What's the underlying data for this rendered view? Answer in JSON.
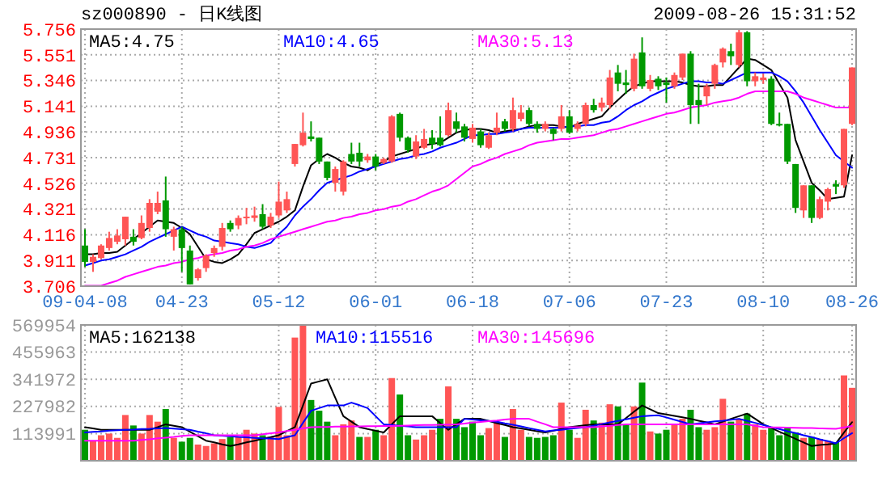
{
  "chart_data": [
    {
      "type": "candlestick",
      "title": "sz000890 - 日K线图",
      "subtitle": "2009-08-26 15:31:52",
      "categories": [
        "09-04-08",
        null,
        null,
        null,
        null,
        null,
        null,
        null,
        null,
        null,
        null,
        null,
        "04-23",
        null,
        null,
        null,
        null,
        null,
        null,
        null,
        null,
        null,
        null,
        null,
        "05-12",
        null,
        null,
        null,
        null,
        null,
        null,
        null,
        null,
        null,
        null,
        null,
        "06-01",
        null,
        null,
        null,
        null,
        null,
        null,
        null,
        null,
        null,
        null,
        null,
        "06-18",
        null,
        null,
        null,
        null,
        null,
        null,
        null,
        null,
        null,
        null,
        null,
        "07-06",
        null,
        null,
        null,
        null,
        null,
        null,
        null,
        null,
        null,
        null,
        null,
        "07-23",
        null,
        null,
        null,
        null,
        null,
        null,
        null,
        null,
        null,
        null,
        null,
        "08-10",
        null,
        null,
        null,
        null,
        null,
        null,
        null,
        null,
        null,
        null,
        "08-26"
      ],
      "ohlc": [
        [
          4.03,
          4.16,
          3.86,
          3.9
        ],
        [
          3.9,
          3.96,
          3.82,
          3.94
        ],
        [
          3.93,
          4.04,
          3.92,
          4.03
        ],
        [
          4.01,
          4.14,
          3.99,
          4.09
        ],
        [
          4.06,
          4.16,
          4.04,
          4.11
        ],
        [
          4.08,
          4.26,
          4.03,
          4.26
        ],
        [
          4.1,
          4.16,
          4.03,
          4.06
        ],
        [
          4.09,
          4.27,
          4.08,
          4.21
        ],
        [
          4.17,
          4.4,
          4.14,
          4.37
        ],
        [
          4.3,
          4.46,
          4.28,
          4.37
        ],
        [
          4.39,
          4.58,
          4.1,
          4.16
        ],
        [
          4.1,
          4.18,
          3.99,
          4.16
        ],
        [
          4.16,
          4.18,
          3.82,
          4.01
        ],
        [
          3.99,
          4.03,
          3.72,
          3.72
        ],
        [
          3.77,
          3.85,
          3.75,
          3.84
        ],
        [
          3.85,
          3.96,
          3.82,
          3.95
        ],
        [
          3.97,
          4.03,
          3.94,
          4.01
        ],
        [
          4.02,
          4.21,
          3.99,
          4.17
        ],
        [
          4.21,
          4.23,
          4.14,
          4.16
        ],
        [
          4.19,
          4.27,
          4.16,
          4.25
        ],
        [
          4.25,
          4.33,
          4.2,
          4.26
        ],
        [
          4.25,
          4.34,
          4.22,
          4.27
        ],
        [
          4.28,
          4.36,
          4.16,
          4.18
        ],
        [
          4.19,
          4.29,
          4.17,
          4.26
        ],
        [
          4.27,
          4.54,
          4.25,
          4.38
        ],
        [
          4.31,
          4.46,
          4.29,
          4.4
        ],
        [
          4.68,
          4.84,
          4.66,
          4.84
        ],
        [
          4.83,
          5.09,
          4.82,
          4.93
        ],
        [
          4.9,
          5.02,
          4.86,
          4.88
        ],
        [
          4.89,
          4.89,
          4.68,
          4.7
        ],
        [
          4.7,
          4.7,
          4.55,
          4.57
        ],
        [
          4.53,
          4.66,
          4.46,
          4.64
        ],
        [
          4.46,
          4.71,
          4.43,
          4.7
        ],
        [
          4.76,
          4.85,
          4.68,
          4.7
        ],
        [
          4.77,
          4.85,
          4.66,
          4.7
        ],
        [
          4.71,
          4.76,
          4.69,
          4.74
        ],
        [
          4.74,
          4.76,
          4.63,
          4.66
        ],
        [
          4.69,
          4.73,
          4.68,
          4.72
        ],
        [
          4.7,
          5.07,
          4.69,
          5.06
        ],
        [
          5.08,
          5.09,
          4.86,
          4.89
        ],
        [
          4.89,
          4.9,
          4.77,
          4.79
        ],
        [
          4.74,
          4.91,
          4.72,
          4.86
        ],
        [
          4.81,
          4.96,
          4.8,
          4.88
        ],
        [
          4.89,
          4.95,
          4.8,
          4.84
        ],
        [
          4.89,
          5.06,
          4.82,
          4.83
        ],
        [
          4.91,
          5.17,
          4.9,
          5.11
        ],
        [
          5.02,
          5.09,
          4.93,
          4.96
        ],
        [
          4.98,
          5.0,
          4.86,
          4.89
        ],
        [
          4.88,
          5.0,
          4.85,
          4.97
        ],
        [
          4.94,
          4.96,
          4.81,
          4.83
        ],
        [
          4.81,
          4.93,
          4.8,
          4.91
        ],
        [
          4.93,
          5.09,
          4.91,
          4.97
        ],
        [
          5.02,
          5.04,
          4.94,
          4.96
        ],
        [
          4.96,
          5.21,
          4.94,
          5.11
        ],
        [
          5.04,
          5.15,
          5.02,
          5.09
        ],
        [
          5.11,
          5.13,
          4.98,
          5.0
        ],
        [
          5.0,
          5.02,
          4.93,
          4.96
        ],
        [
          4.96,
          5.02,
          4.94,
          5.0
        ],
        [
          4.96,
          4.97,
          4.87,
          4.92
        ],
        [
          4.96,
          5.15,
          4.94,
          5.06
        ],
        [
          5.06,
          5.11,
          4.92,
          4.93
        ],
        [
          4.96,
          5.02,
          4.94,
          5.0
        ],
        [
          5.0,
          5.17,
          4.98,
          5.15
        ],
        [
          5.15,
          5.2,
          5.09,
          5.11
        ],
        [
          5.13,
          5.21,
          5.1,
          5.17
        ],
        [
          5.15,
          5.43,
          5.12,
          5.37
        ],
        [
          5.41,
          5.47,
          5.26,
          5.32
        ],
        [
          5.33,
          5.43,
          5.24,
          5.31
        ],
        [
          5.28,
          5.56,
          5.26,
          5.52
        ],
        [
          5.57,
          5.69,
          5.28,
          5.3
        ],
        [
          5.28,
          5.39,
          5.26,
          5.35
        ],
        [
          5.36,
          5.38,
          5.27,
          5.3
        ],
        [
          5.33,
          5.37,
          5.17,
          5.31
        ],
        [
          5.3,
          5.41,
          5.28,
          5.39
        ],
        [
          5.37,
          5.56,
          5.35,
          5.56
        ],
        [
          5.56,
          5.58,
          5.0,
          5.15
        ],
        [
          5.19,
          5.32,
          5.0,
          5.15
        ],
        [
          5.22,
          5.32,
          5.15,
          5.3
        ],
        [
          5.32,
          5.48,
          5.28,
          5.47
        ],
        [
          5.49,
          5.61,
          5.45,
          5.6
        ],
        [
          5.58,
          5.64,
          5.47,
          5.54
        ],
        [
          5.47,
          5.75,
          5.45,
          5.73
        ],
        [
          5.73,
          5.74,
          5.3,
          5.34
        ],
        [
          5.34,
          5.41,
          5.3,
          5.38
        ],
        [
          5.35,
          5.4,
          5.32,
          5.37
        ],
        [
          5.36,
          5.38,
          4.99,
          5.0
        ],
        [
          5.0,
          5.09,
          4.98,
          4.99
        ],
        [
          5.0,
          5.0,
          4.68,
          4.7
        ],
        [
          4.68,
          4.68,
          4.29,
          4.33
        ],
        [
          4.31,
          4.51,
          4.25,
          4.51
        ],
        [
          4.51,
          4.51,
          4.21,
          4.25
        ],
        [
          4.25,
          4.42,
          4.24,
          4.4
        ],
        [
          4.38,
          4.49,
          4.31,
          4.48
        ],
        [
          4.52,
          4.55,
          4.44,
          4.5
        ],
        [
          4.51,
          4.96,
          4.49,
          4.96
        ],
        [
          5.0,
          5.45,
          4.99,
          5.45
        ]
      ],
      "series": [
        {
          "name": "MA5:4.75",
          "type": "line",
          "color": "#000000",
          "values": [
            3.96,
            3.96,
            3.97,
            3.97,
            3.98,
            4.03,
            4.08,
            4.13,
            4.18,
            4.23,
            4.22,
            4.21,
            4.17,
            4.12,
            4.02,
            3.92,
            3.9,
            3.89,
            3.92,
            3.96,
            4.04,
            4.13,
            4.16,
            4.19,
            4.22,
            4.26,
            4.31,
            4.5,
            4.67,
            4.72,
            4.76,
            4.73,
            4.69,
            4.66,
            4.65,
            4.63,
            4.67,
            4.7,
            4.74,
            4.76,
            4.78,
            4.8,
            4.83,
            4.84,
            4.85,
            4.89,
            4.93,
            4.95,
            4.96,
            4.96,
            4.95,
            4.93,
            4.94,
            4.95,
            4.96,
            4.98,
            4.99,
            4.99,
            4.99,
            4.98,
            4.97,
            5.0,
            5.02,
            5.04,
            5.06,
            5.13,
            5.19,
            5.25,
            5.3,
            5.32,
            5.34,
            5.34,
            5.34,
            5.34,
            5.33,
            5.31,
            5.3,
            5.3,
            5.31,
            5.31,
            5.38,
            5.45,
            5.52,
            5.51,
            5.47,
            5.43,
            5.32,
            5.21,
            4.87,
            4.7,
            4.53,
            4.47,
            4.4,
            4.41,
            4.42,
            4.75
          ]
        },
        {
          "name": "MA10:4.65",
          "type": "line",
          "color": "#0000ff",
          "values": [
            3.87,
            3.89,
            3.91,
            3.92,
            3.94,
            3.96,
            3.99,
            4.02,
            4.06,
            4.09,
            4.12,
            4.15,
            4.18,
            4.15,
            4.12,
            4.1,
            4.07,
            4.06,
            4.05,
            4.04,
            4.02,
            4.01,
            4.03,
            4.05,
            4.12,
            4.18,
            4.27,
            4.34,
            4.4,
            4.47,
            4.53,
            4.55,
            4.57,
            4.59,
            4.62,
            4.64,
            4.66,
            4.68,
            4.7,
            4.72,
            4.73,
            4.75,
            4.76,
            4.78,
            4.81,
            4.83,
            4.85,
            4.88,
            4.91,
            4.91,
            4.92,
            4.92,
            4.93,
            4.94,
            4.96,
            4.97,
            4.97,
            4.97,
            4.97,
            4.97,
            4.98,
            4.98,
            4.99,
            4.99,
            5.01,
            5.02,
            5.06,
            5.11,
            5.15,
            5.18,
            5.22,
            5.25,
            5.28,
            5.3,
            5.32,
            5.34,
            5.34,
            5.33,
            5.33,
            5.32,
            5.35,
            5.38,
            5.41,
            5.41,
            5.41,
            5.41,
            5.38,
            5.34,
            5.26,
            5.17,
            5.06,
            4.95,
            4.85,
            4.75,
            4.7,
            4.65
          ]
        },
        {
          "name": "MA30:5.13",
          "type": "line",
          "color": "#ff00ff",
          "values": [
            3.71,
            3.71,
            3.71,
            3.73,
            3.75,
            3.78,
            3.8,
            3.82,
            3.84,
            3.86,
            3.87,
            3.89,
            3.9,
            3.92,
            3.93,
            3.95,
            3.96,
            3.97,
            3.99,
            4.0,
            4.02,
            4.03,
            4.05,
            4.08,
            4.1,
            4.12,
            4.14,
            4.16,
            4.18,
            4.2,
            4.22,
            4.23,
            4.25,
            4.26,
            4.28,
            4.29,
            4.31,
            4.32,
            4.34,
            4.35,
            4.38,
            4.4,
            4.43,
            4.46,
            4.48,
            4.51,
            4.56,
            4.61,
            4.66,
            4.68,
            4.71,
            4.73,
            4.76,
            4.78,
            4.8,
            4.83,
            4.85,
            4.86,
            4.87,
            4.88,
            4.88,
            4.89,
            4.9,
            4.91,
            4.93,
            4.95,
            4.96,
            4.98,
            5.0,
            5.02,
            5.04,
            5.06,
            5.08,
            5.09,
            5.11,
            5.13,
            5.14,
            5.15,
            5.17,
            5.18,
            5.19,
            5.21,
            5.24,
            5.26,
            5.26,
            5.26,
            5.26,
            5.26,
            5.24,
            5.21,
            5.19,
            5.17,
            5.15,
            5.13,
            5.13,
            5.13
          ]
        }
      ],
      "ylim": [
        3.706,
        5.756
      ],
      "yticks": [
        3.706,
        3.911,
        4.116,
        4.321,
        4.526,
        4.731,
        4.936,
        5.141,
        5.346,
        5.551,
        5.756
      ],
      "grid": true,
      "legend": "top left"
    },
    {
      "type": "bar",
      "categories": [
        null,
        null,
        null,
        null,
        null,
        null,
        null,
        null,
        null,
        null,
        null,
        null,
        null,
        null,
        null,
        null,
        null,
        null,
        null,
        null,
        null,
        null,
        null,
        null,
        null,
        null,
        null,
        null,
        null,
        null,
        null,
        null,
        null,
        null,
        null,
        null,
        null,
        null,
        null,
        null,
        null,
        null,
        null,
        null,
        null,
        null,
        null,
        null,
        null,
        null,
        null,
        null,
        null,
        null,
        null,
        null,
        null,
        null,
        null,
        null,
        null,
        null,
        null,
        null,
        null,
        null,
        null,
        null,
        null,
        null,
        null,
        null,
        null,
        null,
        null,
        null,
        null,
        null,
        null,
        null,
        null,
        null,
        null,
        null,
        null,
        null,
        null,
        null,
        null,
        null,
        null,
        null,
        null,
        null,
        null,
        null
      ],
      "values": [
        130000,
        84000,
        107000,
        114000,
        96000,
        192000,
        148000,
        114000,
        192000,
        164000,
        217000,
        96000,
        80000,
        96000,
        68000,
        62000,
        73000,
        91000,
        100000,
        100000,
        130000,
        114000,
        107000,
        100000,
        226000,
        107000,
        517000,
        569000,
        255000,
        210000,
        164000,
        107000,
        153000,
        169000,
        100000,
        100000,
        130000,
        107000,
        347000,
        278000,
        107000,
        89000,
        107000,
        130000,
        176000,
        312000,
        176000,
        141000,
        164000,
        107000,
        137000,
        164000,
        100000,
        217000,
        130000,
        100000,
        96000,
        100000,
        107000,
        244000,
        130000,
        96000,
        214000,
        169000,
        160000,
        237000,
        228000,
        153000,
        228000,
        328000,
        123000,
        114000,
        130000,
        153000,
        176000,
        214000,
        141000,
        130000,
        141000,
        260000,
        164000,
        176000,
        198000,
        153000,
        130000,
        141000,
        107000,
        141000,
        119000,
        96000,
        100000,
        91000,
        84000,
        78000,
        358000,
        306000
      ],
      "colors": [
        "#009900",
        "#ff5555",
        "#ff5555",
        "#ff5555",
        "#ff5555",
        "#ff5555",
        "#009900",
        "#ff5555",
        "#ff5555",
        "#ff5555",
        "#009900",
        "#ff5555",
        "#009900",
        "#009900",
        "#ff5555",
        "#ff5555",
        "#ff5555",
        "#ff5555",
        "#009900",
        "#ff5555",
        "#ff5555",
        "#ff5555",
        "#009900",
        "#ff5555",
        "#ff5555",
        "#ff5555",
        "#ff5555",
        "#ff5555",
        "#009900",
        "#009900",
        "#009900",
        "#ff5555",
        "#ff5555",
        "#ff5555",
        "#009900",
        "#ff5555",
        "#009900",
        "#ff5555",
        "#ff5555",
        "#009900",
        "#009900",
        "#ff5555",
        "#ff5555",
        "#ff5555",
        "#009900",
        "#ff5555",
        "#009900",
        "#009900",
        "#009900",
        "#009900",
        "#ff5555",
        "#ff5555",
        "#009900",
        "#ff5555",
        "#ff5555",
        "#009900",
        "#009900",
        "#009900",
        "#009900",
        "#ff5555",
        "#009900",
        "#ff5555",
        "#ff5555",
        "#009900",
        "#ff5555",
        "#ff5555",
        "#009900",
        "#009900",
        "#ff5555",
        "#009900",
        "#ff5555",
        "#009900",
        "#009900",
        "#ff5555",
        "#ff5555",
        "#009900",
        "#009900",
        "#ff5555",
        "#ff5555",
        "#ff5555",
        "#009900",
        "#ff5555",
        "#009900",
        "#ff5555",
        "#ff5555",
        "#009900",
        "#009900",
        "#009900",
        "#009900",
        "#ff5555",
        "#009900",
        "#ff5555",
        "#ff5555",
        "#009900",
        "#ff5555",
        "#ff5555"
      ],
      "series": [
        {
          "name": "MA5:162138",
          "type": "line",
          "color": "#000000",
          "values": [
            141000,
            136000,
            130000,
            130000,
            130000,
            130000,
            130000,
            130000,
            130000,
            141000,
            153000,
            147000,
            141000,
            122000,
            103000,
            84000,
            77000,
            69000,
            62000,
            69000,
            77000,
            84000,
            92000,
            99000,
            107000,
            124000,
            141000,
            232000,
            324000,
            333000,
            342000,
            264000,
            187000,
            164000,
            141000,
            133000,
            126000,
            119000,
            153000,
            187000,
            187000,
            187000,
            187000,
            187000,
            158000,
            130000,
            153000,
            176000,
            176000,
            176000,
            167000,
            158000,
            150000,
            141000,
            136000,
            130000,
            124000,
            119000,
            126000,
            134000,
            141000,
            145000,
            149000,
            153000,
            153000,
            153000,
            153000,
            179000,
            206000,
            232000,
            216000,
            200000,
            194000,
            188000,
            182000,
            176000,
            168000,
            161000,
            153000,
            164000,
            176000,
            187000,
            198000,
            176000,
            153000,
            138000,
            122000,
            107000,
            92000,
            77000,
            62000,
            66000,
            69000,
            73000,
            118000,
            162000
          ]
        },
        {
          "name": "MA10:115516",
          "type": "line",
          "color": "#0000ff",
          "values": [
            119000,
            121000,
            123000,
            126000,
            128000,
            130000,
            131000,
            133000,
            134000,
            136000,
            137000,
            135000,
            132000,
            130000,
            122000,
            115000,
            107000,
            105000,
            103000,
            100000,
            98000,
            96000,
            94000,
            93000,
            91000,
            99000,
            107000,
            159000,
            210000,
            221000,
            232000,
            232000,
            232000,
            244000,
            233000,
            221000,
            187000,
            153000,
            150000,
            147000,
            144000,
            141000,
            141000,
            141000,
            141000,
            141000,
            141000,
            176000,
            173000,
            170000,
            167000,
            164000,
            157000,
            151000,
            144000,
            137000,
            130000,
            123000,
            127000,
            130000,
            134000,
            137000,
            141000,
            147000,
            154000,
            161000,
            167000,
            174000,
            181000,
            187000,
            189000,
            191000,
            182000,
            172000,
            163000,
            153000,
            157000,
            161000,
            165000,
            168000,
            172000,
            176000,
            167000,
            159000,
            150000,
            141000,
            133000,
            124000,
            116000,
            107000,
            99000,
            90000,
            82000,
            73000,
            95000,
            116000
          ]
        },
        {
          "name": "MA30:145696",
          "type": "line",
          "color": "#ff00ff",
          "values": [
            84000,
            84000,
            84000,
            84000,
            84000,
            84000,
            84000,
            87000,
            90000,
            94000,
            97000,
            100000,
            104000,
            107000,
            107000,
            107000,
            107000,
            107000,
            107000,
            107000,
            107000,
            107000,
            111000,
            115000,
            119000,
            125000,
            130000,
            136000,
            141000,
            142000,
            142000,
            143000,
            143000,
            144000,
            144000,
            145000,
            145000,
            146000,
            146000,
            147000,
            148000,
            149000,
            150000,
            150000,
            151000,
            152000,
            153000,
            156000,
            160000,
            163000,
            166000,
            169000,
            173000,
            176000,
            176000,
            176000,
            164000,
            153000,
            141000,
            141000,
            141000,
            141000,
            141000,
            141000,
            144000,
            147000,
            150000,
            153000,
            153000,
            153000,
            153000,
            153000,
            153000,
            153000,
            153000,
            153000,
            153000,
            153000,
            153000,
            153000,
            153000,
            153000,
            153000,
            147000,
            141000,
            140000,
            140000,
            139000,
            138000,
            137000,
            137000,
            136000,
            135000,
            134000,
            140000,
            146000
          ]
        }
      ],
      "ylim": [
        0,
        569954
      ],
      "yticks": [
        113991,
        227982,
        341972,
        455963,
        569954
      ],
      "tick_labels": "y",
      "grid": true,
      "legend": "top left"
    }
  ]
}
